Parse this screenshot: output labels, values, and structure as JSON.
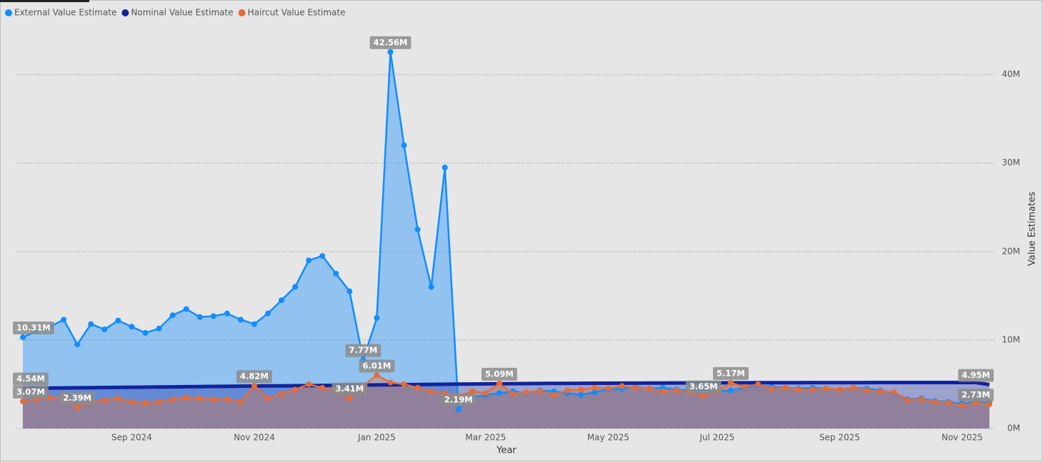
{
  "chart_data": {
    "type": "line",
    "x_label": "Year",
    "y_label": "Value Estimates",
    "categories": [
      null,
      null,
      null,
      null,
      null,
      null,
      null,
      null,
      "Sep 2024",
      null,
      null,
      null,
      null,
      null,
      null,
      null,
      null,
      "Nov 2024",
      null,
      null,
      null,
      null,
      null,
      null,
      null,
      null,
      "Jan 2025",
      null,
      null,
      null,
      null,
      null,
      null,
      null,
      "Mar 2025",
      null,
      null,
      null,
      null,
      null,
      null,
      null,
      null,
      "May 2025",
      null,
      null,
      null,
      null,
      null,
      null,
      null,
      "Jul 2025",
      null,
      null,
      null,
      null,
      null,
      null,
      null,
      null,
      "Sep 2025",
      null,
      null,
      null,
      null,
      null,
      null,
      null,
      null,
      "Nov 2025",
      null,
      null
    ],
    "ylim": [
      0,
      44
    ],
    "yticks": [
      {
        "value": 0,
        "label": "0M"
      },
      {
        "value": 10,
        "label": "10M"
      },
      {
        "value": 20,
        "label": "20M"
      },
      {
        "value": 30,
        "label": "30M"
      },
      {
        "value": 40,
        "label": "40M"
      }
    ],
    "grid": true,
    "legend": "top-left",
    "series": [
      {
        "name": "External Value Estimate",
        "color": "#118dff",
        "values": [
          10.31,
          11,
          11.5,
          12.3,
          9.5,
          11.8,
          11.2,
          12.2,
          11.5,
          10.8,
          11.3,
          12.8,
          13.5,
          12.6,
          12.7,
          13.0,
          12.3,
          11.8,
          13.0,
          14.5,
          16.0,
          19.0,
          19.5,
          17.5,
          15.5,
          7.77,
          12.5,
          42.56,
          32,
          22.5,
          16,
          29.5,
          2.19,
          3.5,
          3.8,
          4.0,
          4.2,
          4.0,
          4.3,
          4.2,
          4.0,
          3.8,
          4.1,
          4.4,
          4.5,
          4.7,
          4.5,
          4.6,
          4.4,
          4.3,
          4.5,
          4.2,
          4.3,
          4.6,
          4.9,
          4.7,
          4.6,
          4.5,
          4.6,
          4.5,
          4.4,
          4.6,
          4.5,
          4.3,
          4.0,
          3.3,
          3.4,
          3.1,
          3.0,
          2.8,
          3.0,
          2.9
        ],
        "value_labels": [
          "10.31M",
          null,
          null,
          null,
          null,
          null,
          null,
          null,
          null,
          null,
          null,
          null,
          null,
          null,
          null,
          null,
          null,
          null,
          null,
          null,
          null,
          null,
          null,
          null,
          null,
          "7.77M",
          null,
          "42.56M",
          null,
          null,
          null,
          null,
          "2.19M",
          null,
          null,
          null,
          null,
          null,
          null,
          null,
          null,
          null,
          null,
          null,
          null,
          null,
          null,
          null,
          null,
          null,
          null,
          null,
          null,
          null,
          null,
          null,
          null,
          null,
          null,
          null,
          null,
          null,
          null,
          null,
          null,
          null,
          null,
          null,
          null,
          null,
          null,
          null
        ]
      },
      {
        "name": "Nominal Value Estimate",
        "color": "#12239e",
        "values": [
          4.54,
          4.55,
          4.57,
          4.58,
          4.6,
          4.61,
          4.63,
          4.64,
          4.66,
          4.67,
          4.69,
          4.7,
          4.72,
          4.73,
          4.75,
          4.76,
          4.78,
          4.79,
          4.81,
          4.82,
          4.84,
          4.85,
          4.87,
          4.88,
          4.9,
          4.91,
          4.93,
          4.94,
          4.96,
          4.97,
          4.99,
          5.0,
          5.02,
          5.03,
          5.05,
          5.06,
          5.07,
          5.08,
          5.09,
          5.1,
          5.1,
          5.11,
          5.12,
          5.12,
          5.13,
          5.13,
          5.14,
          5.14,
          5.15,
          5.15,
          5.16,
          5.16,
          5.17,
          5.17,
          5.18,
          5.18,
          5.18,
          5.18,
          5.19,
          5.19,
          5.19,
          5.19,
          5.19,
          5.2,
          5.2,
          5.2,
          5.2,
          5.2,
          5.2,
          5.2,
          5.2,
          4.95
        ],
        "value_labels": [
          "4.54M",
          null,
          null,
          null,
          null,
          null,
          null,
          null,
          null,
          null,
          null,
          null,
          null,
          null,
          null,
          null,
          null,
          null,
          null,
          null,
          null,
          null,
          null,
          null,
          null,
          null,
          null,
          null,
          null,
          null,
          null,
          null,
          null,
          null,
          null,
          null,
          null,
          null,
          null,
          null,
          null,
          null,
          null,
          null,
          null,
          null,
          null,
          null,
          null,
          null,
          null,
          null,
          null,
          null,
          null,
          null,
          null,
          null,
          null,
          null,
          null,
          null,
          null,
          null,
          null,
          null,
          null,
          null,
          null,
          null,
          null,
          "4.95M"
        ]
      },
      {
        "name": "Haircut Value Estimate",
        "color": "#e66c37",
        "values": [
          3.07,
          3.3,
          3.5,
          3.4,
          2.39,
          3.0,
          3.2,
          3.4,
          3.0,
          2.9,
          3.0,
          3.3,
          3.5,
          3.4,
          3.3,
          3.3,
          3.0,
          4.82,
          3.4,
          3.9,
          4.4,
          5.0,
          4.6,
          4.3,
          3.41,
          4.8,
          6.01,
          5.2,
          5.0,
          4.6,
          4.2,
          4.0,
          3.7,
          4.2,
          4.0,
          5.09,
          3.9,
          4.1,
          4.2,
          3.8,
          4.3,
          4.4,
          4.6,
          4.5,
          4.8,
          4.6,
          4.5,
          4.2,
          4.3,
          4.1,
          3.65,
          4.2,
          5.17,
          4.7,
          5.0,
          4.5,
          4.6,
          4.4,
          4.4,
          4.5,
          4.4,
          4.6,
          4.3,
          4.2,
          4.1,
          3.2,
          3.3,
          3.0,
          2.9,
          2.6,
          2.9,
          2.73
        ],
        "value_labels": [
          "3.07M",
          null,
          null,
          null,
          "2.39M",
          null,
          null,
          null,
          null,
          null,
          null,
          null,
          null,
          null,
          null,
          null,
          null,
          "4.82M",
          null,
          null,
          null,
          null,
          null,
          null,
          "3.41M",
          null,
          "6.01M",
          null,
          null,
          null,
          null,
          null,
          null,
          null,
          null,
          "5.09M",
          null,
          null,
          null,
          null,
          null,
          null,
          null,
          null,
          null,
          null,
          null,
          null,
          null,
          null,
          "3.65M",
          null,
          "5.17M",
          null,
          null,
          null,
          null,
          null,
          null,
          null,
          null,
          null,
          null,
          null,
          null,
          null,
          null,
          null,
          null,
          null,
          null,
          "2.73M"
        ]
      }
    ]
  }
}
